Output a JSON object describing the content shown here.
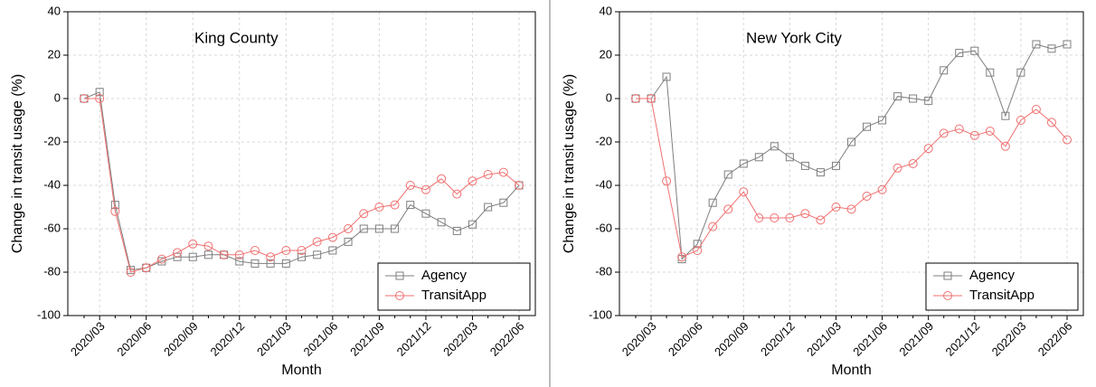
{
  "chart_data": [
    {
      "type": "line",
      "title": "King County",
      "x_label": "Month",
      "y_label": "Change in transit usage (%)",
      "categories": [
        null,
        "2020/03",
        null,
        null,
        "2020/06",
        null,
        null,
        "2020/09",
        null,
        null,
        "2020/12",
        null,
        null,
        "2021/03",
        null,
        null,
        "2021/06",
        null,
        null,
        "2021/09",
        null,
        null,
        "2021/12",
        null,
        null,
        "2022/03",
        null,
        null,
        "2022/06"
      ],
      "series": [
        {
          "name": "Agency",
          "color": "#7f7f7f",
          "marker": "square",
          "values": [
            0,
            3,
            -49,
            -79,
            -78,
            -75,
            -73,
            -73,
            -72,
            -72,
            -75,
            -76,
            -76,
            -76,
            -73,
            -72,
            -70,
            -66,
            -60,
            -60,
            -60,
            -49,
            -53,
            -57,
            -61,
            -58,
            -50,
            -48,
            -40
          ]
        },
        {
          "name": "TransitApp",
          "color": "#f07070",
          "marker": "circle",
          "values": [
            0,
            0,
            -52,
            -80,
            -78,
            -74,
            -71,
            -67,
            -68,
            -72,
            -72,
            -70,
            -73,
            -70,
            -70,
            -66,
            -64,
            -60,
            -53,
            -50,
            -49,
            -40,
            -42,
            -37,
            -44,
            -38,
            -35,
            -34,
            -40
          ]
        }
      ],
      "ylim": [
        -100,
        40
      ],
      "yticks": [
        -100,
        -80,
        -60,
        -40,
        -20,
        0,
        20,
        40
      ],
      "grid": true,
      "legend": "lower right"
    },
    {
      "type": "line",
      "title": "New York City",
      "x_label": "Month",
      "y_label": "Change in transit usage (%)",
      "categories": [
        null,
        "2020/03",
        null,
        null,
        "2020/06",
        null,
        null,
        "2020/09",
        null,
        null,
        "2020/12",
        null,
        null,
        "2021/03",
        null,
        null,
        "2021/06",
        null,
        null,
        "2021/09",
        null,
        null,
        "2021/12",
        null,
        null,
        "2022/03",
        null,
        null,
        "2022/06"
      ],
      "series": [
        {
          "name": "Agency",
          "color": "#7f7f7f",
          "marker": "square",
          "values": [
            0,
            0,
            10,
            -74,
            -67,
            -48,
            -35,
            -30,
            -27,
            -22,
            -27,
            -31,
            -34,
            -31,
            -20,
            -13,
            -10,
            1,
            0,
            -1,
            13,
            21,
            22,
            12,
            -8,
            12,
            25,
            23,
            25
          ]
        },
        {
          "name": "TransitApp",
          "color": "#f07070",
          "marker": "circle",
          "values": [
            0,
            0,
            -38,
            -73,
            -70,
            -59,
            -51,
            -43,
            -55,
            -55,
            -55,
            -53,
            -56,
            -50,
            -51,
            -45,
            -42,
            -32,
            -30,
            -23,
            -16,
            -14,
            -17,
            -15,
            -22,
            -10,
            -5,
            -11,
            -19
          ]
        }
      ],
      "ylim": [
        -100,
        40
      ],
      "yticks": [
        -100,
        -80,
        -60,
        -40,
        -20,
        0,
        20,
        40
      ],
      "grid": true,
      "legend": "lower right"
    }
  ]
}
